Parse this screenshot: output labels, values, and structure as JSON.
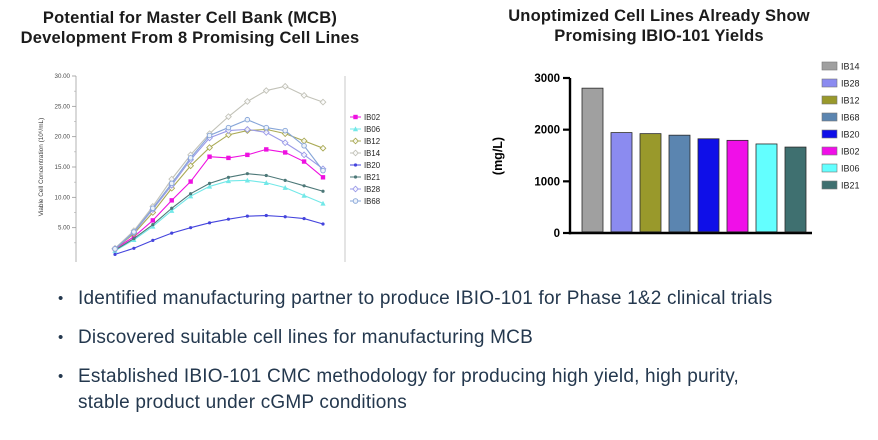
{
  "left_chart": {
    "title_line1": "Potential for Master Cell Bank (MCB)",
    "title_line2": "Development From 8 Promising Cell Lines"
  },
  "right_chart": {
    "title_line1": "Unoptimized Cell Lines Already Show",
    "title_line2": "Promising IBIO-101 Yields"
  },
  "bullets": [
    "Identified manufacturing partner to produce IBIO-101 for Phase 1&2 clinical trials",
    "Discovered suitable cell lines for manufacturing MCB",
    "Established IBIO-101 CMC methodology for producing high yield, high purity, stable product under cGMP conditions"
  ],
  "chart_data": [
    {
      "type": "line",
      "title": "Potential for Master Cell Bank (MCB) Development From 8 Promising Cell Lines",
      "xlabel": "",
      "ylabel": "Viable Cell Concentration (10⁶/mL)",
      "ylim": [
        0,
        30
      ],
      "y_ticks": [
        "5.00",
        "10.00",
        "15.00",
        "20.00",
        "25.00",
        "30.00"
      ],
      "grid": false,
      "legend_position": "right",
      "x": [
        1,
        2,
        3,
        4,
        5,
        6,
        7,
        8,
        9,
        10,
        11,
        12
      ],
      "series": [
        {
          "name": "IB02",
          "color": "#ee10e0",
          "marker": "square",
          "values": [
            1.5,
            3.5,
            6.2,
            9.5,
            12.6,
            16.7,
            16.5,
            17.0,
            17.9,
            17.4,
            15.9,
            13.3
          ]
        },
        {
          "name": "IB06",
          "color": "#72e8e8",
          "marker": "triangle",
          "values": [
            1.2,
            3.0,
            5.2,
            7.8,
            10.2,
            11.8,
            12.7,
            12.8,
            12.4,
            11.6,
            10.3,
            9.0
          ]
        },
        {
          "name": "IB12",
          "color": "#aaaa55",
          "marker": "diamond",
          "values": [
            1.5,
            4.0,
            7.5,
            11.5,
            15.2,
            18.2,
            20.3,
            21.0,
            21.2,
            20.5,
            19.3,
            18.1
          ]
        },
        {
          "name": "IB14",
          "color": "#c2c2b8",
          "marker": "diamond",
          "values": [
            1.6,
            4.5,
            8.5,
            13.0,
            17.0,
            20.5,
            23.3,
            25.8,
            27.6,
            28.3,
            26.8,
            25.7
          ]
        },
        {
          "name": "IB20",
          "color": "#4444dd",
          "marker": "dot",
          "values": [
            0.6,
            1.6,
            2.9,
            4.1,
            5.0,
            5.8,
            6.4,
            6.9,
            7.0,
            6.8,
            6.5,
            5.6
          ]
        },
        {
          "name": "IB21",
          "color": "#4d7878",
          "marker": "dot",
          "values": [
            1.3,
            3.2,
            5.5,
            8.2,
            10.6,
            12.3,
            13.3,
            13.9,
            13.6,
            12.8,
            11.9,
            11.0
          ]
        },
        {
          "name": "IB28",
          "color": "#9a9ae8",
          "marker": "diamond",
          "values": [
            1.5,
            4.2,
            8.0,
            12.0,
            16.2,
            19.8,
            21.0,
            21.2,
            20.7,
            19.0,
            17.0,
            14.7
          ]
        },
        {
          "name": "IB68",
          "color": "#86a5d8",
          "marker": "circle",
          "values": [
            1.5,
            4.3,
            8.2,
            12.3,
            16.5,
            20.2,
            21.5,
            22.8,
            21.5,
            21.0,
            18.5,
            14.4
          ]
        }
      ]
    },
    {
      "type": "bar",
      "title": "Unoptimized Cell Lines Already Show Promising IBIO-101 Yields",
      "xlabel": "",
      "ylabel": "(mg/L)",
      "ylim": [
        0,
        3000
      ],
      "y_ticks": [
        "0",
        "1000",
        "2000",
        "3000"
      ],
      "grid": false,
      "legend_position": "right",
      "categories": [
        "IB14",
        "IB28",
        "IB12",
        "IB68",
        "IB20",
        "IB02",
        "IB06",
        "IB21"
      ],
      "values": [
        2780,
        1920,
        1900,
        1870,
        1800,
        1770,
        1700,
        1640
      ],
      "colors": [
        "#a0a0a0",
        "#8b8bf0",
        "#99992b",
        "#5b85b0",
        "#0f0fe8",
        "#f00fe8",
        "#63ffff",
        "#3f7070"
      ]
    }
  ]
}
